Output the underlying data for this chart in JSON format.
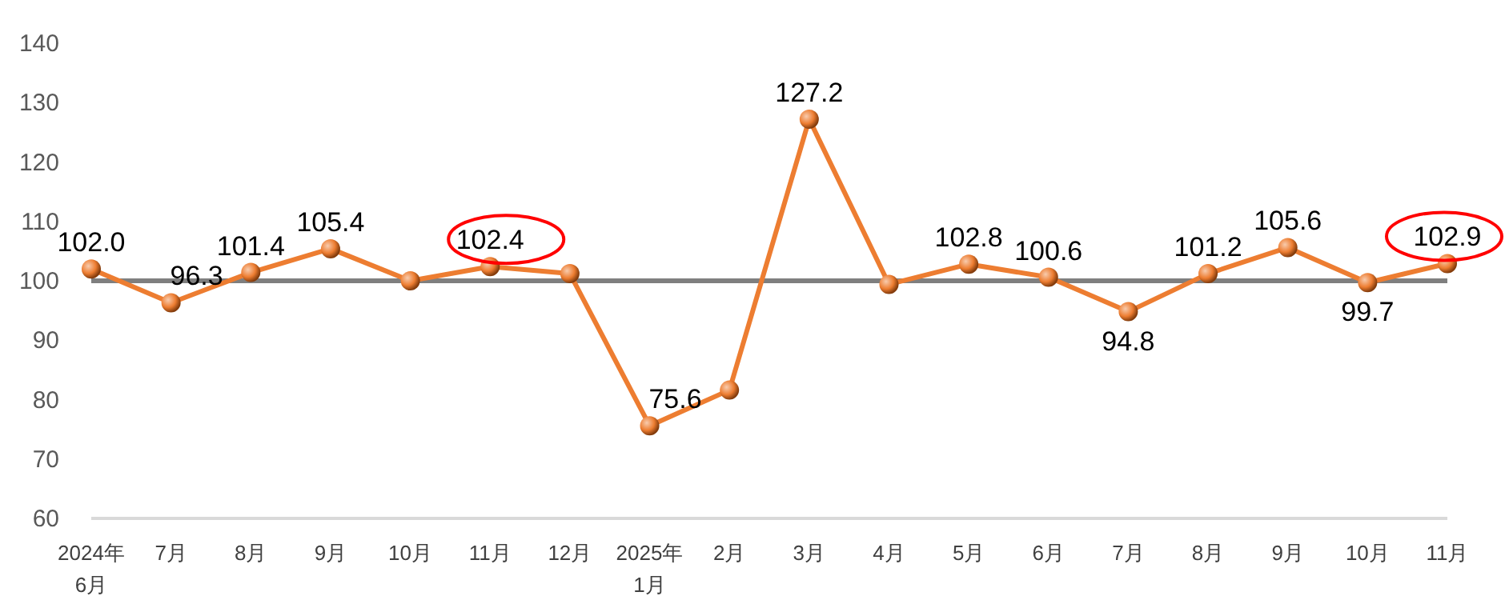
{
  "chart_data": {
    "type": "line",
    "categories": [
      "2024年\n6月",
      "7月",
      "8月",
      "9月",
      "10月",
      "11月",
      "12月",
      "2025年\n1月",
      "2月",
      "3月",
      "4月",
      "5月",
      "6月",
      "7月",
      "8月",
      "9月",
      "10月",
      "11月"
    ],
    "series": [
      {
        "color": "#ed7d31",
        "values": [
          102.0,
          96.3,
          101.4,
          105.4,
          100.0,
          102.4,
          101.2,
          75.6,
          81.6,
          127.2,
          99.4,
          102.8,
          100.6,
          94.8,
          101.2,
          105.6,
          99.7,
          102.9
        ],
        "value_labels": [
          "102.0",
          "96.3",
          "101.4",
          "105.4",
          null,
          "102.4",
          null,
          "75.6",
          null,
          "127.2",
          null,
          "102.8",
          "100.6",
          "94.8",
          "101.2",
          "105.6",
          "99.7",
          "102.9"
        ]
      }
    ],
    "ylim": [
      60,
      140
    ],
    "yticks": [
      60,
      70,
      80,
      90,
      100,
      110,
      120,
      130,
      140
    ],
    "ref_lines": [
      {
        "axis": "y",
        "value": 100,
        "color": "#7f7f7f"
      }
    ],
    "marker": "circle",
    "line_style": "solid",
    "grid": false
  }
}
